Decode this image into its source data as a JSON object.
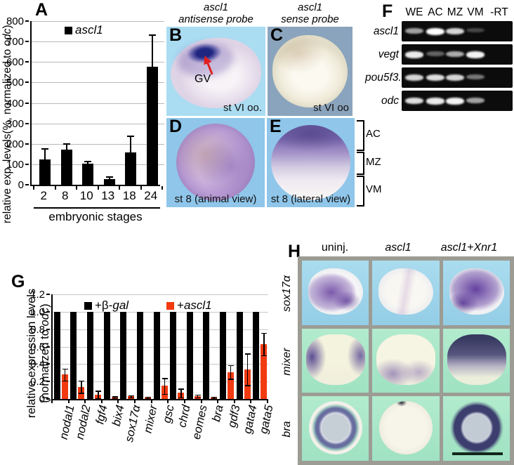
{
  "panelA": {
    "label": "A",
    "legend_gene": "ascl1",
    "ylabel_pre": "relative exp. levels(%, normalized to ",
    "ylabel_gene": "odc",
    "ylabel_post": ")",
    "xlabel": "embryonic stages"
  },
  "panelB": {
    "label": "B",
    "title_line1": "ascl1",
    "title_line2": "antisense probe",
    "annotation": "GV",
    "caption": "st VI oo."
  },
  "panelC": {
    "label": "C",
    "title_line1": "ascl1",
    "title_line2": "sense probe",
    "caption": "st VI oo"
  },
  "panelD": {
    "label": "D",
    "caption": "st 8 (animal view)"
  },
  "panelE": {
    "label": "E",
    "caption": "st 8 (lateral view)",
    "brackets": [
      "AC",
      "MZ",
      "VM"
    ]
  },
  "panelF": {
    "label": "F",
    "lanes": [
      "WE",
      "AC",
      "MZ",
      "VM",
      "-RT"
    ],
    "genes": [
      "ascl1",
      "vegt",
      "pou5f3.3",
      "odc"
    ],
    "band_intensities": [
      [
        0.55,
        1.0,
        0.8,
        0.12,
        0
      ],
      [
        0.9,
        0.25,
        0.6,
        0.95,
        0
      ],
      [
        0.8,
        0.85,
        0.8,
        0.35,
        0
      ],
      [
        0.85,
        0.9,
        0.95,
        0.55,
        0
      ]
    ]
  },
  "panelG": {
    "label": "G",
    "ylabel_line1": "relative expression levels",
    "ylabel_line2_pre": "(normalized to ",
    "ylabel_gene": "odc",
    "ylabel_post": ")",
    "legend": [
      {
        "prefix": "+β-",
        "gene": "gal",
        "color": "#000000"
      },
      {
        "prefix": "+",
        "gene": "ascl1",
        "color": "#f23a10"
      }
    ]
  },
  "panelH": {
    "label": "H",
    "col_headers": [
      {
        "text": "uninj.",
        "italic": false
      },
      {
        "text": "ascl1",
        "italic": true
      },
      {
        "text": "ascl1+Xnr1",
        "italic": true
      }
    ],
    "row_labels": [
      "sox17α",
      "mixer",
      "bra"
    ]
  },
  "chart_data": [
    {
      "id": "A",
      "type": "bar",
      "title": "",
      "legend": [
        "ascl1"
      ],
      "categories": [
        "2",
        "8",
        "10",
        "13",
        "18",
        "24"
      ],
      "values": [
        124,
        171,
        103,
        28,
        159,
        578
      ],
      "errors_up": [
        54,
        32,
        14,
        14,
        83,
        158
      ],
      "xlabel": "embryonic stages",
      "ylabel": "relative exp. levels(%, normalized to odc)",
      "ylim": [
        0,
        800
      ],
      "ytick_step": 100,
      "bar_color": "#000000",
      "grid": true,
      "legend_position": "top-left-inside"
    },
    {
      "id": "G",
      "type": "bar",
      "title": "",
      "categories": [
        "nodal1",
        "nodal2",
        "fgf4",
        "bix4",
        "sox17α",
        "mixer",
        "gsc",
        "chrd",
        "eomes",
        "bra",
        "gdf3",
        "gata4",
        "gata5"
      ],
      "series": [
        {
          "name": "+β-gal",
          "color": "#000000",
          "values": [
            1,
            1,
            1,
            1,
            1,
            1,
            1,
            1,
            1,
            1,
            1,
            1,
            1
          ],
          "errors": [
            0,
            0,
            0,
            0,
            0,
            0,
            0,
            0,
            0,
            0,
            0,
            0,
            0
          ]
        },
        {
          "name": "+ascl1",
          "color": "#f23a10",
          "values": [
            0.28,
            0.14,
            0.05,
            0.02,
            0.03,
            0.02,
            0.15,
            0.07,
            0.035,
            0.02,
            0.31,
            0.34,
            0.63
          ],
          "errors": [
            0.07,
            0.07,
            0.045,
            0.01,
            0.012,
            0.008,
            0.09,
            0.05,
            0.015,
            0.008,
            0.08,
            0.18,
            0.13
          ]
        }
      ],
      "xlabel": "",
      "ylabel": "relative expression levels (normalized to odc)",
      "ylim": [
        0,
        1.2
      ],
      "ytick_step": 0.2,
      "grid": true,
      "legend_position": "top-inside"
    }
  ]
}
